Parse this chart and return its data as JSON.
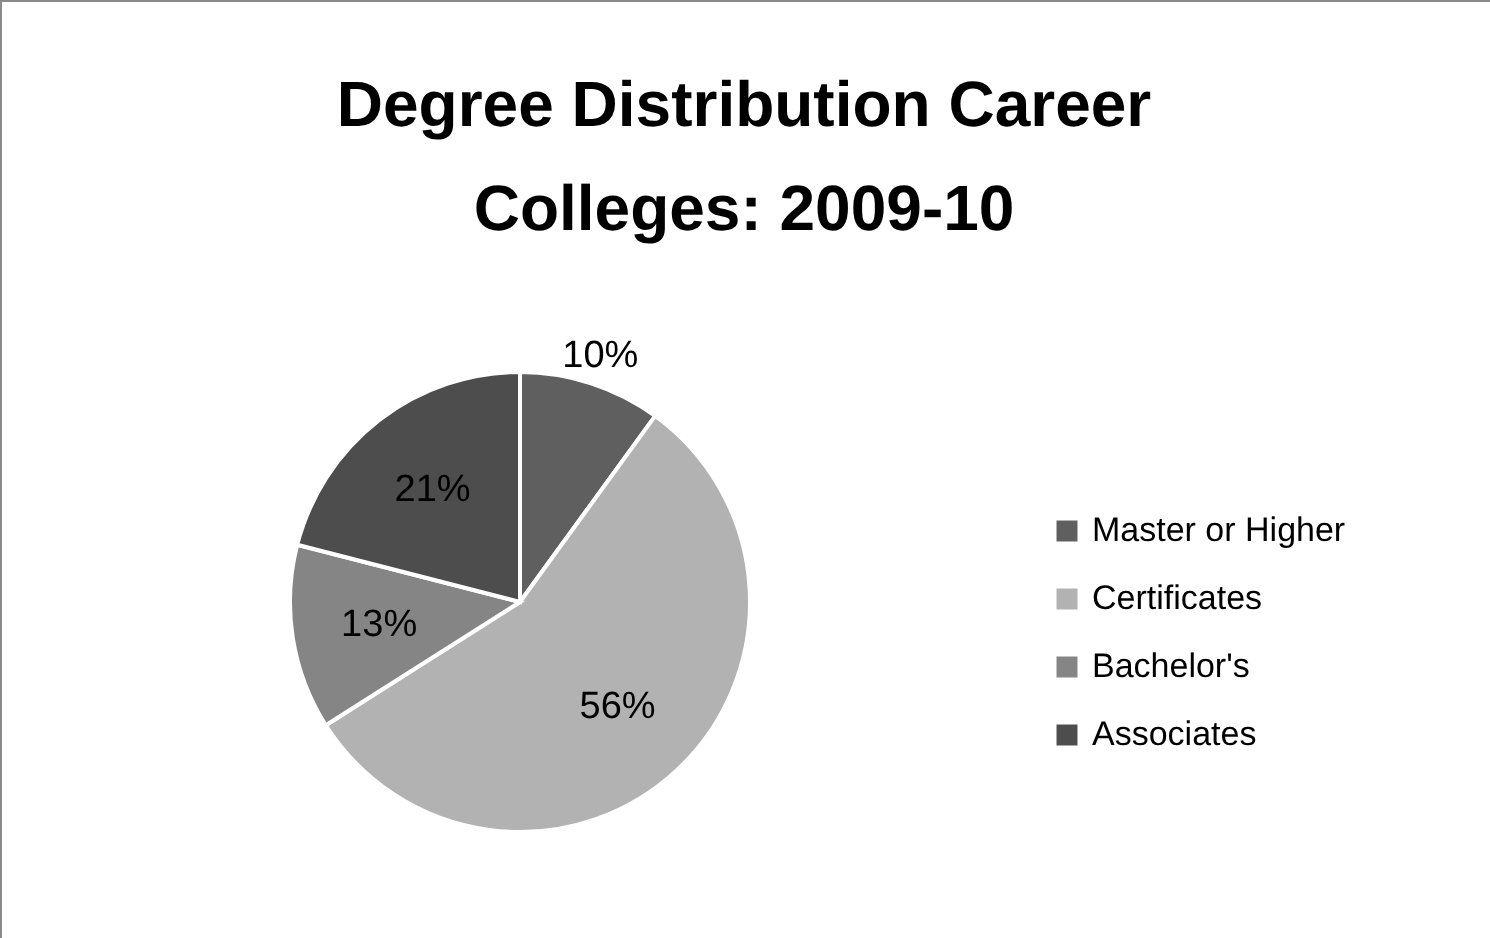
{
  "chart_data": {
    "type": "pie",
    "title": "Degree Distribution Career Colleges:  2009-10",
    "categories": [
      "Master or Higher",
      "Certificates",
      "Bachelor's",
      "Associates"
    ],
    "values": [
      10,
      56,
      13,
      21
    ],
    "colors": [
      "#5f5f5f",
      "#b2b2b2",
      "#858585",
      "#4d4d4d"
    ],
    "value_labels": [
      "10%",
      "56%",
      "13%",
      "21%"
    ],
    "legend": "right"
  }
}
